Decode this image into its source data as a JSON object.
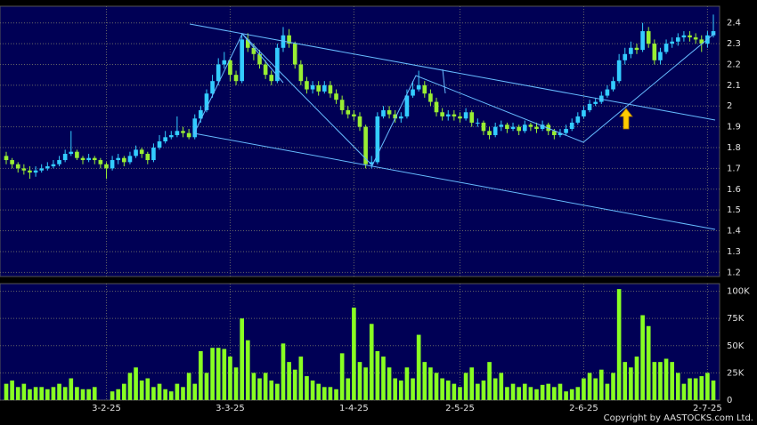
{
  "chart_data": {
    "type": "candlestick",
    "categories": [
      null,
      null,
      null,
      null,
      null,
      null,
      null,
      null,
      null,
      null,
      null,
      null,
      null,
      null,
      null,
      null,
      null,
      "3-2-25",
      null,
      null,
      null,
      null,
      null,
      null,
      null,
      null,
      null,
      null,
      null,
      null,
      null,
      null,
      null,
      null,
      null,
      null,
      null,
      null,
      "3-3-25",
      null,
      null,
      null,
      null,
      null,
      null,
      null,
      null,
      null,
      null,
      null,
      null,
      null,
      null,
      null,
      null,
      null,
      null,
      null,
      null,
      "1-4-25",
      null,
      null,
      null,
      null,
      null,
      null,
      null,
      null,
      null,
      null,
      null,
      null,
      null,
      null,
      null,
      null,
      null,
      "2-5-25",
      null,
      null,
      null,
      null,
      null,
      null,
      null,
      null,
      null,
      null,
      null,
      null,
      null,
      null,
      null,
      null,
      null,
      null,
      null,
      null,
      "2-6-25",
      null,
      null,
      null,
      null,
      null,
      null,
      null,
      null,
      null,
      null,
      null,
      null,
      null,
      null,
      null,
      null,
      null,
      null,
      null,
      null,
      "2-7-25",
      null
    ],
    "open": [
      1.76,
      1.74,
      1.72,
      1.7,
      1.69,
      1.68,
      1.69,
      1.7,
      1.71,
      1.72,
      1.74,
      1.77,
      1.78,
      1.75,
      1.74,
      1.75,
      1.74,
      1.72,
      1.7,
      1.74,
      1.75,
      1.73,
      1.76,
      1.79,
      1.77,
      1.74,
      1.8,
      1.83,
      1.85,
      1.86,
      1.88,
      1.87,
      1.85,
      1.94,
      1.98,
      2.06,
      2.12,
      2.2,
      2.22,
      2.15,
      2.12,
      2.32,
      2.28,
      2.25,
      2.2,
      2.15,
      2.12,
      2.28,
      2.34,
      2.3,
      2.2,
      2.12,
      2.08,
      2.1,
      2.07,
      2.1,
      2.06,
      2.03,
      1.98,
      1.96,
      1.95,
      1.9,
      1.72,
      1.73,
      1.95,
      1.98,
      1.96,
      1.94,
      1.95,
      2.05,
      2.08,
      2.1,
      2.06,
      2.02,
      1.97,
      1.95,
      1.96,
      1.95,
      1.94,
      1.97,
      1.92,
      1.92,
      1.88,
      1.86,
      1.9,
      1.91,
      1.89,
      1.9,
      1.88,
      1.91,
      1.9,
      1.89,
      1.91,
      1.88,
      1.86,
      1.87,
      1.89,
      1.92,
      1.95,
      1.98,
      2.01,
      2.02,
      2.05,
      2.08,
      2.12,
      2.22,
      2.25,
      2.28,
      2.27,
      2.36,
      2.3,
      2.22,
      2.26,
      2.3,
      2.31,
      2.33,
      2.34,
      2.33,
      2.32,
      2.3,
      2.34
    ],
    "high": [
      1.78,
      1.75,
      1.73,
      1.72,
      1.71,
      1.71,
      1.72,
      1.73,
      1.74,
      1.76,
      1.79,
      1.88,
      1.79,
      1.76,
      1.77,
      1.76,
      1.75,
      1.73,
      1.76,
      1.77,
      1.76,
      1.78,
      1.81,
      1.8,
      1.78,
      1.82,
      1.86,
      1.88,
      1.88,
      1.95,
      1.9,
      1.89,
      1.96,
      2.0,
      2.08,
      2.15,
      2.23,
      2.26,
      2.23,
      2.17,
      2.35,
      2.35,
      2.3,
      2.27,
      2.22,
      2.17,
      2.3,
      2.38,
      2.37,
      2.31,
      2.22,
      2.14,
      2.12,
      2.12,
      2.12,
      2.12,
      2.08,
      2.05,
      2.0,
      1.98,
      1.97,
      1.91,
      1.76,
      1.97,
      2.0,
      2.0,
      1.98,
      1.97,
      2.08,
      2.12,
      2.17,
      2.12,
      2.08,
      2.04,
      1.99,
      1.98,
      1.98,
      1.97,
      1.99,
      1.98,
      1.94,
      1.93,
      1.9,
      1.92,
      1.93,
      1.92,
      1.92,
      1.91,
      1.93,
      1.92,
      1.92,
      1.93,
      1.92,
      1.89,
      1.89,
      1.91,
      1.94,
      1.97,
      2.0,
      2.03,
      2.04,
      2.07,
      2.1,
      2.14,
      2.25,
      2.28,
      2.31,
      2.3,
      2.4,
      2.38,
      2.32,
      2.28,
      2.32,
      2.33,
      2.35,
      2.36,
      2.36,
      2.35,
      2.34,
      2.36,
      2.44
    ],
    "low": [
      1.72,
      1.7,
      1.68,
      1.67,
      1.65,
      1.66,
      1.68,
      1.69,
      1.7,
      1.71,
      1.73,
      1.76,
      1.74,
      1.72,
      1.73,
      1.72,
      1.7,
      1.65,
      1.69,
      1.72,
      1.71,
      1.72,
      1.75,
      1.75,
      1.72,
      1.73,
      1.79,
      1.82,
      1.84,
      1.85,
      1.85,
      1.84,
      1.84,
      1.92,
      1.97,
      2.04,
      2.1,
      2.18,
      2.12,
      2.1,
      2.11,
      2.26,
      2.22,
      2.18,
      2.13,
      2.1,
      2.11,
      2.26,
      2.28,
      2.18,
      2.1,
      2.06,
      2.06,
      2.05,
      2.06,
      2.04,
      2.01,
      1.96,
      1.94,
      1.93,
      1.88,
      1.7,
      1.7,
      1.72,
      1.94,
      1.94,
      1.92,
      1.92,
      1.94,
      2.04,
      2.07,
      2.04,
      2.0,
      1.95,
      1.93,
      1.93,
      1.93,
      1.92,
      1.93,
      1.9,
      1.9,
      1.86,
      1.84,
      1.85,
      1.88,
      1.87,
      1.88,
      1.86,
      1.87,
      1.88,
      1.87,
      1.88,
      1.86,
      1.84,
      1.85,
      1.86,
      1.88,
      1.91,
      1.94,
      1.97,
      2.0,
      2.01,
      2.04,
      2.07,
      2.11,
      2.2,
      2.23,
      2.25,
      2.26,
      2.28,
      2.2,
      2.2,
      2.25,
      2.28,
      2.29,
      2.31,
      2.31,
      2.3,
      2.26,
      2.28,
      2.33
    ],
    "close": [
      1.74,
      1.72,
      1.7,
      1.69,
      1.68,
      1.69,
      1.7,
      1.71,
      1.72,
      1.74,
      1.77,
      1.78,
      1.75,
      1.74,
      1.75,
      1.74,
      1.72,
      1.7,
      1.74,
      1.75,
      1.73,
      1.76,
      1.79,
      1.77,
      1.74,
      1.8,
      1.83,
      1.85,
      1.86,
      1.88,
      1.87,
      1.85,
      1.94,
      1.98,
      2.06,
      2.12,
      2.2,
      2.22,
      2.15,
      2.12,
      2.32,
      2.28,
      2.25,
      2.2,
      2.15,
      2.12,
      2.28,
      2.34,
      2.3,
      2.2,
      2.12,
      2.08,
      2.1,
      2.07,
      2.1,
      2.06,
      2.03,
      1.98,
      1.96,
      1.95,
      1.9,
      1.72,
      1.73,
      1.95,
      1.98,
      1.96,
      1.94,
      1.95,
      2.05,
      2.08,
      2.1,
      2.06,
      2.02,
      1.97,
      1.95,
      1.96,
      1.95,
      1.94,
      1.97,
      1.92,
      1.92,
      1.88,
      1.86,
      1.9,
      1.91,
      1.89,
      1.9,
      1.88,
      1.91,
      1.9,
      1.89,
      1.91,
      1.88,
      1.86,
      1.87,
      1.89,
      1.92,
      1.95,
      1.98,
      2.01,
      2.02,
      2.05,
      2.08,
      2.12,
      2.22,
      2.25,
      2.28,
      2.27,
      2.36,
      2.3,
      2.22,
      2.26,
      2.3,
      2.31,
      2.33,
      2.34,
      2.33,
      2.32,
      2.3,
      2.34,
      2.36
    ],
    "up_color": "#33ccff",
    "down_color": "#99ee33",
    "ylim": [
      1.18,
      2.48
    ],
    "yticks": [
      1.2,
      1.3,
      1.4,
      1.5,
      1.6,
      1.7,
      1.8,
      1.9,
      2,
      2.1,
      2.2,
      2.3,
      2.4
    ],
    "grid": true,
    "volume": {
      "values": [
        15000,
        18000,
        12000,
        15000,
        10000,
        12000,
        12000,
        10000,
        12000,
        15000,
        12000,
        20000,
        12000,
        10000,
        10000,
        12000,
        3000,
        5000,
        8000,
        10000,
        15000,
        25000,
        30000,
        18000,
        20000,
        12000,
        15000,
        10000,
        8000,
        15000,
        12000,
        25000,
        15000,
        45000,
        25000,
        48000,
        48000,
        47000,
        40000,
        30000,
        75000,
        55000,
        25000,
        20000,
        25000,
        18000,
        15000,
        52000,
        35000,
        28000,
        40000,
        22000,
        18000,
        15000,
        12000,
        12000,
        10000,
        43000,
        20000,
        85000,
        35000,
        30000,
        70000,
        45000,
        40000,
        30000,
        20000,
        18000,
        30000,
        20000,
        60000,
        35000,
        30000,
        25000,
        20000,
        18000,
        15000,
        12000,
        25000,
        30000,
        15000,
        18000,
        35000,
        20000,
        25000,
        12000,
        15000,
        12000,
        15000,
        12000,
        10000,
        14000,
        15000,
        12000,
        15000,
        8000,
        10000,
        12000,
        20000,
        25000,
        20000,
        28000,
        15000,
        25000,
        102000,
        35000,
        30000,
        40000,
        78000,
        68000,
        35000,
        35000,
        38000,
        35000,
        25000,
        15000,
        20000,
        20000,
        22000,
        25000,
        18000
      ],
      "color": "#88ff22",
      "ylim": [
        0,
        107000
      ],
      "yticks": [
        0,
        {
          "value": 25000,
          "label": "25K"
        },
        {
          "value": 50000,
          "label": "50K"
        },
        {
          "value": 75000,
          "label": "75K"
        },
        {
          "value": 100000,
          "label": "100K"
        }
      ]
    },
    "copyright": "Copyright by AASTOCKS.com Ltd."
  }
}
